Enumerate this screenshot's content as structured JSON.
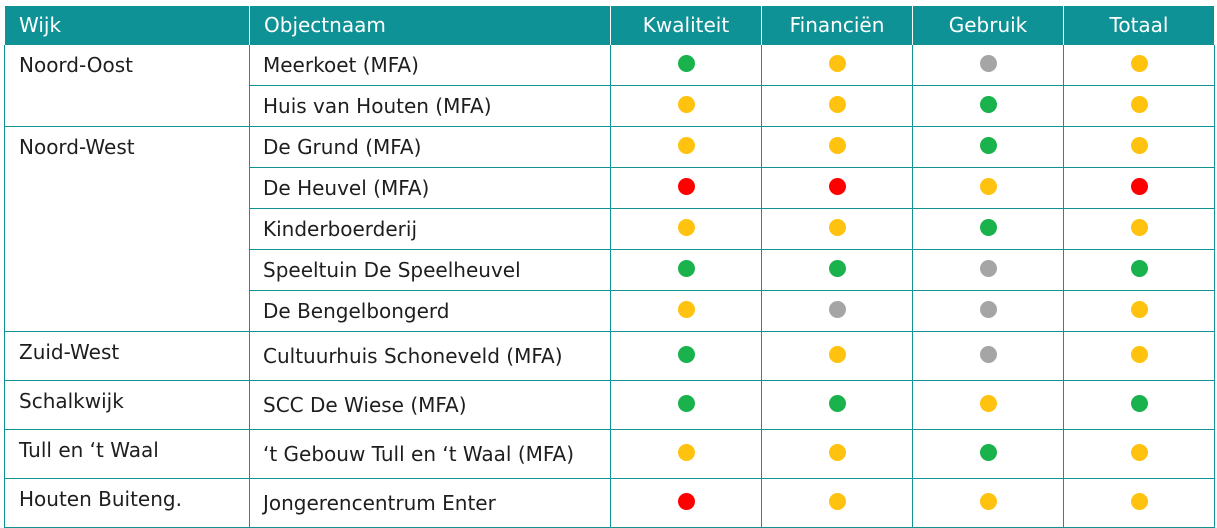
{
  "header": {
    "wijk": "Wijk",
    "objectnaam": "Objectnaam",
    "kwaliteit": "Kwaliteit",
    "financien": "Financiën",
    "gebruik": "Gebruik",
    "totaal": "Totaal"
  },
  "status_colors": {
    "green": "#1ab24c",
    "yellow": "#ffc20e",
    "red": "#ff0000",
    "grey": "#a5a5a5"
  },
  "groups": [
    {
      "wijk": "Noord-Oost",
      "rows": [
        {
          "name": "Meerkoet (MFA)",
          "kwaliteit": "green",
          "financien": "yellow",
          "gebruik": "grey",
          "totaal": "yellow"
        },
        {
          "name": "Huis van Houten (MFA)",
          "kwaliteit": "yellow",
          "financien": "yellow",
          "gebruik": "green",
          "totaal": "yellow"
        }
      ]
    },
    {
      "wijk": "Noord-West",
      "rows": [
        {
          "name": "De Grund (MFA)",
          "kwaliteit": "yellow",
          "financien": "yellow",
          "gebruik": "green",
          "totaal": "yellow"
        },
        {
          "name": "De Heuvel (MFA)",
          "kwaliteit": "red",
          "financien": "red",
          "gebruik": "yellow",
          "totaal": "red"
        },
        {
          "name": "Kinderboerderij",
          "kwaliteit": "yellow",
          "financien": "yellow",
          "gebruik": "green",
          "totaal": "yellow"
        },
        {
          "name": "Speeltuin De Speelheuvel",
          "kwaliteit": "green",
          "financien": "green",
          "gebruik": "grey",
          "totaal": "green"
        },
        {
          "name": "De Bengelbongerd",
          "kwaliteit": "yellow",
          "financien": "grey",
          "gebruik": "grey",
          "totaal": "yellow"
        }
      ]
    },
    {
      "wijk": "Zuid-West",
      "rows": [
        {
          "name": "Cultuurhuis Schoneveld (MFA)",
          "kwaliteit": "green",
          "financien": "yellow",
          "gebruik": "grey",
          "totaal": "yellow"
        }
      ]
    },
    {
      "wijk": "Schalkwijk",
      "rows": [
        {
          "name": "SCC De Wiese (MFA)",
          "kwaliteit": "green",
          "financien": "green",
          "gebruik": "yellow",
          "totaal": "green"
        }
      ]
    },
    {
      "wijk": "Tull en ‘t Waal",
      "rows": [
        {
          "name": "‘t Gebouw Tull en ‘t Waal (MFA)",
          "kwaliteit": "yellow",
          "financien": "yellow",
          "gebruik": "green",
          "totaal": "yellow"
        }
      ]
    },
    {
      "wijk": "Houten Buiteng.",
      "rows": [
        {
          "name": "Jongerencentrum Enter",
          "kwaliteit": "red",
          "financien": "yellow",
          "gebruik": "yellow",
          "totaal": "yellow"
        }
      ]
    }
  ]
}
